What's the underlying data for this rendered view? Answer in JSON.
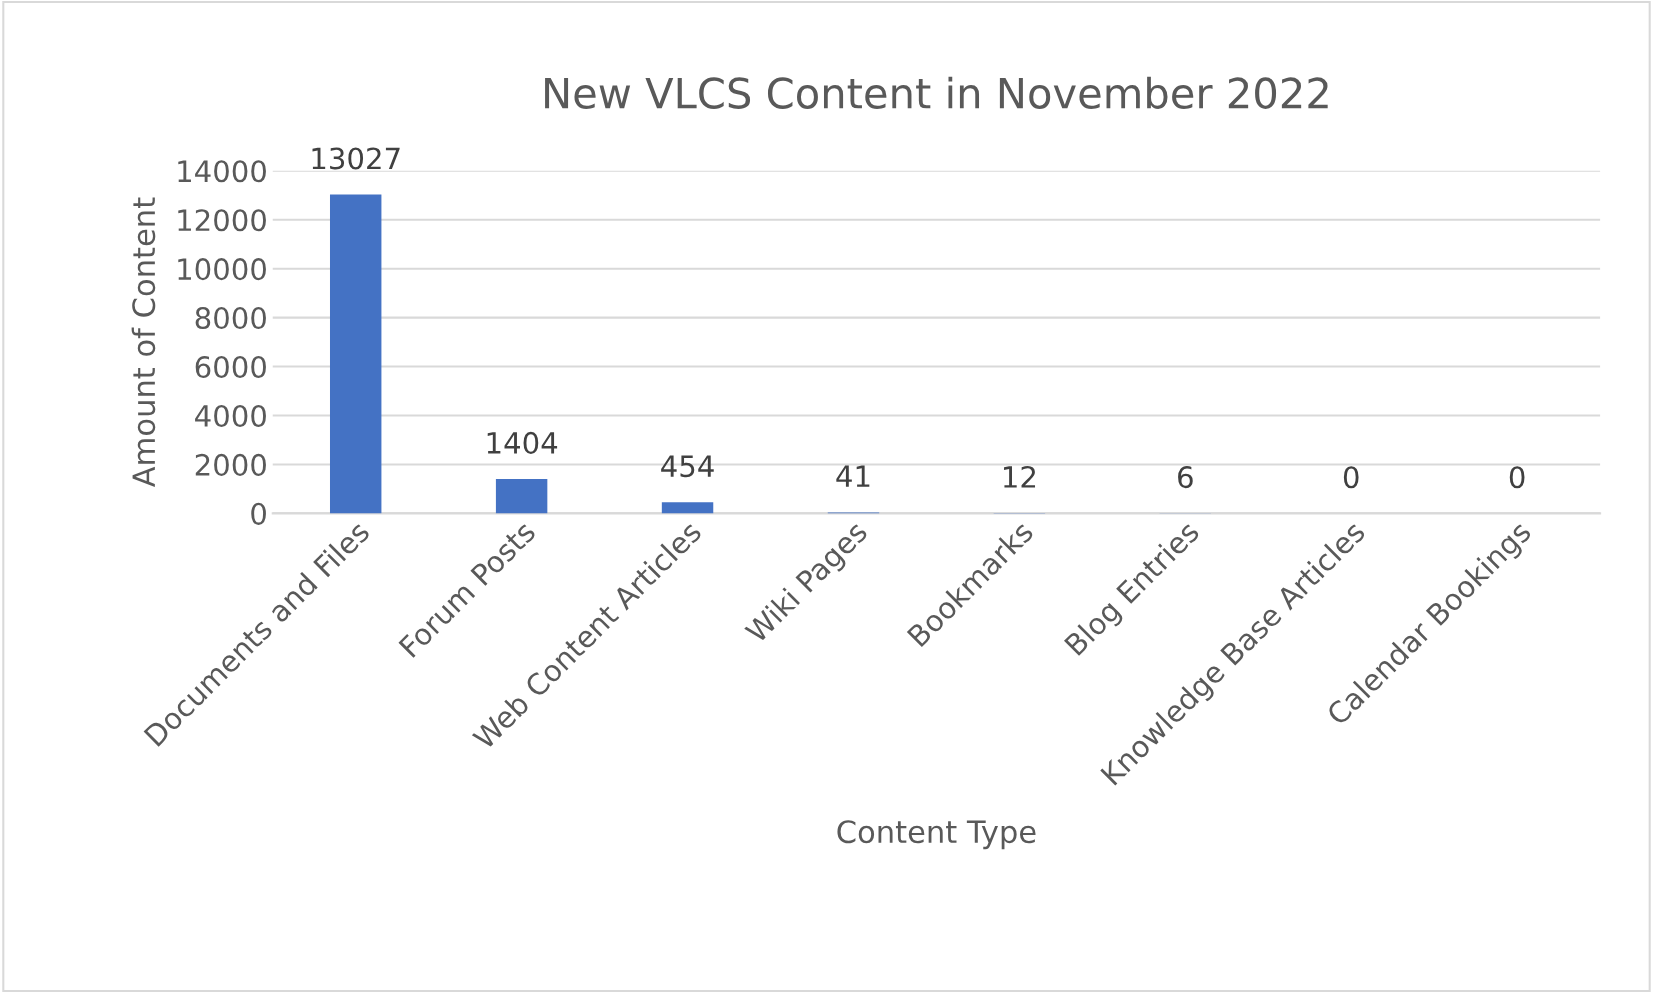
{
  "chart_data": {
    "type": "bar",
    "title": "New VLCS Content in November 2022",
    "xlabel": "Content Type",
    "ylabel": "Amount of Content",
    "categories": [
      "Documents and Files",
      "Forum Posts",
      "Web Content Articles",
      "Wiki Pages",
      "Bookmarks",
      "Blog Entries",
      "Knowledge Base Articles",
      "Calendar Bookings"
    ],
    "values": [
      13027,
      1404,
      454,
      41,
      12,
      6,
      0,
      0
    ],
    "color": "#4472c4",
    "ylim": [
      0,
      14000
    ],
    "yticks": [
      0,
      2000,
      4000,
      6000,
      8000,
      10000,
      12000,
      14000
    ],
    "grid": "y",
    "data_labels": true
  }
}
